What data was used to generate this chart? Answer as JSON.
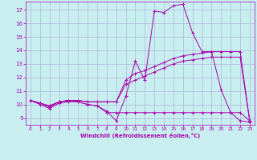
{
  "xlabel": "Windchill (Refroidissement éolien,°C)",
  "background_color": "#c8eef0",
  "grid_color": "#b0b8d8",
  "line_color": "#aa00aa",
  "xlim": [
    -0.5,
    23.5
  ],
  "ylim": [
    8.5,
    17.6
  ],
  "xticks": [
    0,
    1,
    2,
    3,
    4,
    5,
    6,
    7,
    8,
    9,
    10,
    11,
    12,
    13,
    14,
    15,
    16,
    17,
    18,
    19,
    20,
    21,
    22,
    23
  ],
  "yticks": [
    9,
    10,
    11,
    12,
    13,
    14,
    15,
    16,
    17
  ],
  "series": [
    {
      "x": [
        0,
        1,
        2,
        3,
        4,
        5,
        6,
        7,
        8,
        9,
        10,
        11,
        12,
        13,
        14,
        15,
        16,
        17,
        18,
        19,
        20,
        21,
        22,
        23
      ],
      "y": [
        10.3,
        10.1,
        9.8,
        10.2,
        10.3,
        10.2,
        10.0,
        9.9,
        9.5,
        8.8,
        10.6,
        13.2,
        11.8,
        16.9,
        16.8,
        17.3,
        17.4,
        15.3,
        13.9,
        13.9,
        11.1,
        9.4,
        8.8,
        8.7
      ]
    },
    {
      "x": [
        0,
        1,
        2,
        3,
        4,
        5,
        6,
        7,
        8,
        9,
        10,
        11,
        12,
        13,
        14,
        15,
        16,
        17,
        18,
        19,
        20,
        21,
        22,
        23
      ],
      "y": [
        10.3,
        10.0,
        9.7,
        10.1,
        10.2,
        10.2,
        10.0,
        9.9,
        9.4,
        9.4,
        9.4,
        9.4,
        9.4,
        9.4,
        9.4,
        9.4,
        9.4,
        9.4,
        9.4,
        9.4,
        9.4,
        9.4,
        9.4,
        8.8
      ]
    },
    {
      "x": [
        0,
        1,
        2,
        3,
        4,
        5,
        6,
        7,
        8,
        9,
        10,
        11,
        12,
        13,
        14,
        15,
        16,
        17,
        18,
        19,
        20,
        21,
        22,
        23
      ],
      "y": [
        10.3,
        10.1,
        9.9,
        10.2,
        10.3,
        10.3,
        10.2,
        10.2,
        10.2,
        10.2,
        11.8,
        12.3,
        12.5,
        12.8,
        13.1,
        13.4,
        13.6,
        13.7,
        13.8,
        13.9,
        13.9,
        13.9,
        13.9,
        8.8
      ]
    },
    {
      "x": [
        0,
        1,
        2,
        3,
        4,
        5,
        6,
        7,
        8,
        9,
        10,
        11,
        12,
        13,
        14,
        15,
        16,
        17,
        18,
        19,
        20,
        21,
        22,
        23
      ],
      "y": [
        10.3,
        10.1,
        9.9,
        10.2,
        10.3,
        10.3,
        10.2,
        10.2,
        10.2,
        10.2,
        11.5,
        11.8,
        12.1,
        12.4,
        12.7,
        13.0,
        13.2,
        13.3,
        13.4,
        13.5,
        13.5,
        13.5,
        13.5,
        8.8
      ]
    }
  ]
}
